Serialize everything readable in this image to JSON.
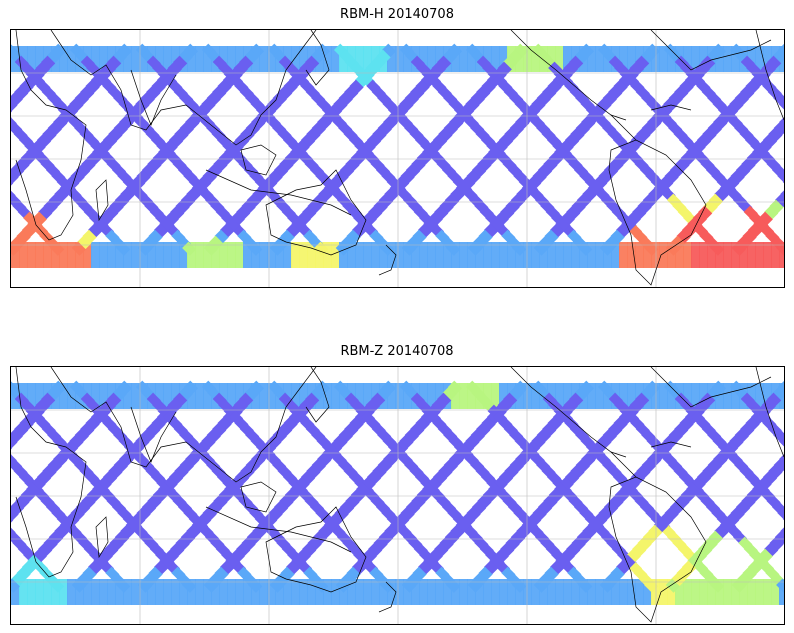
{
  "panels": [
    {
      "title": "RBM-H 20140708"
    },
    {
      "title": "RBM-Z 20140708"
    }
  ],
  "colors": {
    "low": "#6a5ff0",
    "mid_low": "#5aa8f8",
    "mid": "#5de2f0",
    "mid_high": "#b8f580",
    "high": "#f4f56a",
    "very_high": "#fa7a5a",
    "max": "#f75b5b",
    "coast": "#000000",
    "grid": "#bbbbbb"
  }
}
